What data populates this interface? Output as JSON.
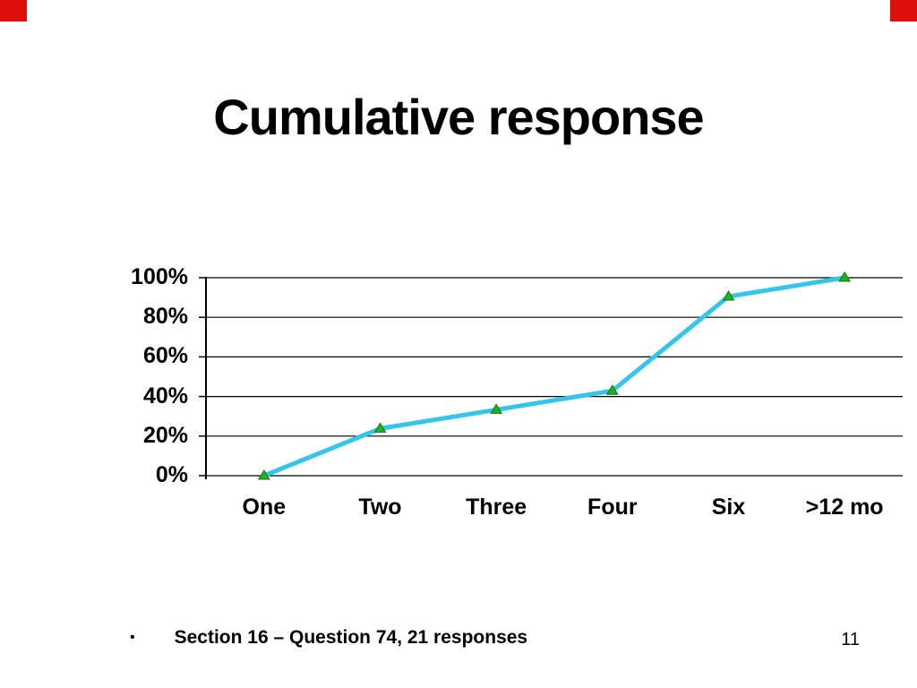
{
  "slide": {
    "title": "Cumulative response",
    "bullet_glyph": "•",
    "bullet_text": "Section 16 – Question 74, 21 responses",
    "page_number": "11",
    "accent_color": "#dd100e"
  },
  "chart_data": {
    "type": "line",
    "title": "Cumulative response",
    "categories": [
      "One",
      "Two",
      "Three",
      "Four",
      "Six",
      ">12 mo"
    ],
    "series": [
      {
        "name": "Cumulative response",
        "values": [
          0,
          23.8,
          33.3,
          42.9,
          90.5,
          100
        ]
      }
    ],
    "xlabel": "",
    "ylabel": "",
    "ylim": [
      0,
      100
    ],
    "yticks": [
      0,
      20,
      40,
      60,
      80,
      100
    ],
    "ytick_labels": [
      "0%",
      "20%",
      "40%",
      "60%",
      "80%",
      "100%"
    ],
    "grid": true,
    "legend": false,
    "line_color": "#35c5ea",
    "marker": "triangle",
    "marker_color": "#1fb024",
    "marker_edge_color": "#0d7a12",
    "axis_color": "#000000"
  }
}
